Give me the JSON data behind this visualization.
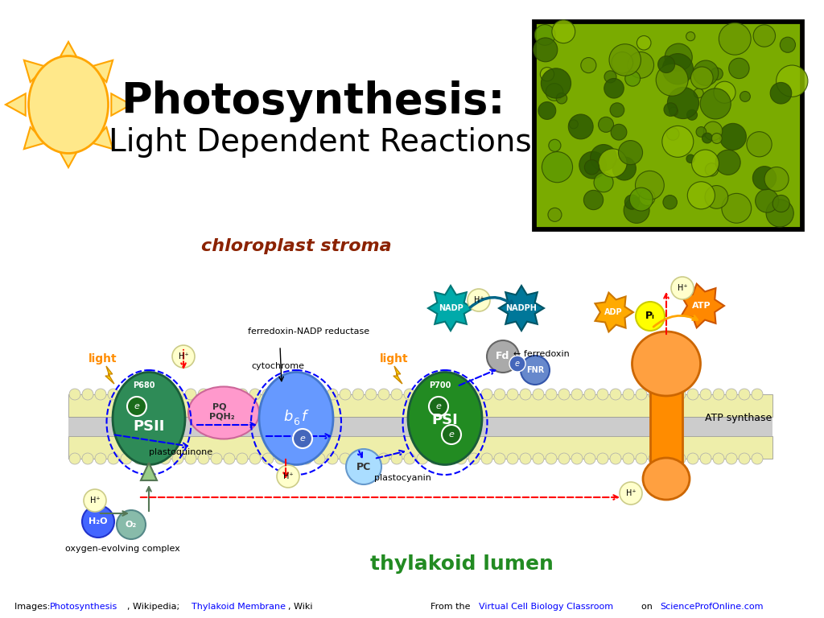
{
  "title1": "Photosynthesis:",
  "title2": "Light Dependent Reactions",
  "bg_color": "#ffffff",
  "stroma_label": "chloroplast stroma",
  "lumen_label": "thylakoid lumen",
  "sun_color": "#FFE88A",
  "sun_outline": "#FFA500",
  "title1_color": "#000000",
  "title2_color": "#000000",
  "stroma_color": "#8B2200",
  "lumen_color": "#228B22",
  "psii_color": "#2E8B57",
  "psi_color": "#228B22",
  "cyt_color": "#6699FF",
  "atp_synthase_color": "#FFA500",
  "pq_color": "#FF99CC",
  "pc_color": "#99CCFF",
  "fd_color": "#888888",
  "fnr_color": "#6688CC",
  "nadp_color": "#008888",
  "h2o_color": "#4466FF",
  "o2_color": "#99CCAA",
  "h_ion_color": "#FFFFCC",
  "orange_arrow": "#FF6600",
  "red_arrow": "#FF0000",
  "blue_arrow": "#0000FF",
  "teal_arrow": "#008888",
  "light_color": "#FF8C00"
}
